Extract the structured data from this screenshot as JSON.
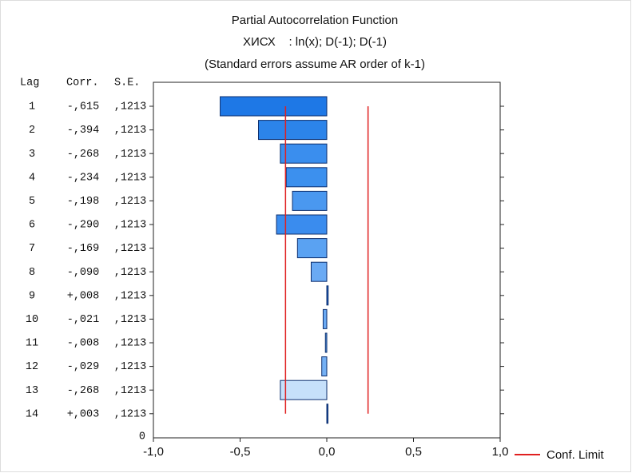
{
  "chart_data": {
    "type": "bar",
    "title": "Partial Autocorrelation Function",
    "subtitle": "ХИСХ    : ln(x); D(-1); D(-1)",
    "note": "(Standard errors assume AR order of k-1)",
    "columns": [
      "Lag",
      "Corr.",
      "S.E."
    ],
    "categories": [
      1,
      2,
      3,
      4,
      5,
      6,
      7,
      8,
      9,
      10,
      11,
      12,
      13,
      14
    ],
    "lag_axis_end": 0,
    "values": [
      -0.615,
      -0.394,
      -0.268,
      -0.234,
      -0.198,
      -0.29,
      -0.169,
      -0.09,
      0.008,
      -0.021,
      -0.008,
      -0.029,
      -0.268,
      0.003
    ],
    "value_labels": [
      "-,615",
      "-,394",
      "-,268",
      "-,234",
      "-,198",
      "-,290",
      "-,169",
      "-,090",
      "+,008",
      "-,021",
      "-,008",
      "-,029",
      "-,268",
      "+,003"
    ],
    "se_labels": [
      ",1213",
      ",1213",
      ",1213",
      ",1213",
      ",1213",
      ",1213",
      ",1213",
      ",1213",
      ",1213",
      ",1213",
      ",1213",
      ",1213",
      ",1213",
      ",1213"
    ],
    "colors": [
      "#1e78e6",
      "#2c84ea",
      "#3a8eee",
      "#3c90ee",
      "#4a98f0",
      "#3a8cee",
      "#5aa2f2",
      "#6aaaf4",
      "#1a5cc4",
      "#6aaaf4",
      "#5a9ee6",
      "#74b0f4",
      "#c6e0fa",
      "#1a4fb0"
    ],
    "conf_limits": [
      -0.238,
      0.238
    ],
    "conf_color": "#e02020",
    "legend": "Conf. Limit",
    "xlim": [
      -1,
      1
    ],
    "xticks": [
      {
        "value": -1,
        "label": "-1,0"
      },
      {
        "value": -0.5,
        "label": "-0,5"
      },
      {
        "value": 0,
        "label": "0,0"
      },
      {
        "value": 0.5,
        "label": "0,5"
      },
      {
        "value": 1,
        "label": "1,0"
      }
    ]
  }
}
